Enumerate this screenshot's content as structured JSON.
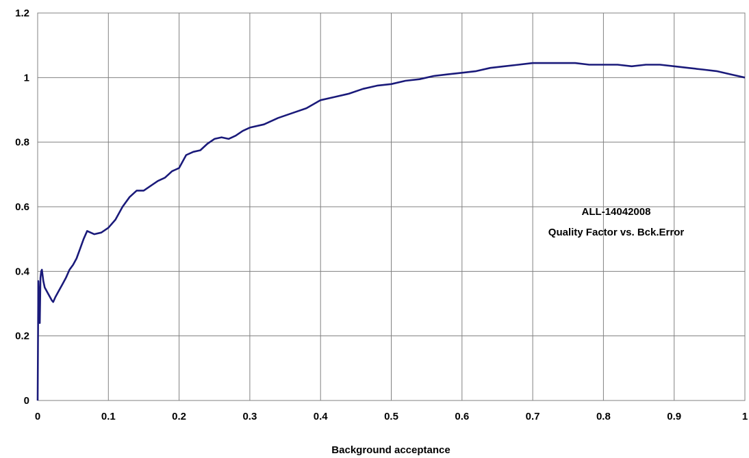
{
  "chart_data": {
    "type": "line",
    "xlabel": "Background acceptance",
    "ylabel": "",
    "xlim": [
      0,
      1
    ],
    "ylim": [
      0,
      1.2
    ],
    "x_ticks": [
      "0",
      "0.1",
      "0.2",
      "0.3",
      "0.4",
      "0.5",
      "0.6",
      "0.7",
      "0.8",
      "0.9",
      "1"
    ],
    "y_ticks": [
      "0",
      "0.2",
      "0.4",
      "0.6",
      "0.8",
      "1",
      "1.2"
    ],
    "grid": true,
    "line_color": "#1a1a7a",
    "annotation": [
      "ALL-14042008",
      "Quality Factor vs. Bck.Error"
    ],
    "series": [
      {
        "x": [
          0,
          0.001,
          0.002,
          0.003,
          0.004,
          0.005,
          0.006,
          0.008,
          0.01,
          0.015,
          0.02,
          0.022,
          0.025,
          0.03,
          0.035,
          0.04,
          0.045,
          0.05,
          0.055,
          0.06,
          0.065,
          0.07,
          0.08,
          0.09,
          0.1,
          0.11,
          0.12,
          0.13,
          0.14,
          0.15,
          0.16,
          0.17,
          0.18,
          0.19,
          0.2,
          0.21,
          0.22,
          0.23,
          0.24,
          0.25,
          0.26,
          0.27,
          0.28,
          0.29,
          0.3,
          0.32,
          0.34,
          0.36,
          0.38,
          0.4,
          0.42,
          0.44,
          0.46,
          0.48,
          0.5,
          0.52,
          0.54,
          0.56,
          0.58,
          0.6,
          0.62,
          0.64,
          0.66,
          0.68,
          0.7,
          0.72,
          0.74,
          0.76,
          0.78,
          0.8,
          0.82,
          0.84,
          0.86,
          0.88,
          0.9,
          0.92,
          0.94,
          0.96,
          0.98,
          1.0
        ],
        "y": [
          0.0,
          0.37,
          0.3,
          0.24,
          0.38,
          0.4,
          0.405,
          0.37,
          0.35,
          0.33,
          0.31,
          0.305,
          0.32,
          0.34,
          0.36,
          0.38,
          0.405,
          0.42,
          0.44,
          0.47,
          0.5,
          0.525,
          0.515,
          0.52,
          0.535,
          0.56,
          0.6,
          0.63,
          0.65,
          0.65,
          0.665,
          0.68,
          0.69,
          0.71,
          0.72,
          0.76,
          0.77,
          0.775,
          0.795,
          0.81,
          0.815,
          0.81,
          0.82,
          0.835,
          0.845,
          0.855,
          0.875,
          0.89,
          0.905,
          0.93,
          0.94,
          0.95,
          0.965,
          0.975,
          0.98,
          0.99,
          0.995,
          1.005,
          1.01,
          1.015,
          1.02,
          1.03,
          1.035,
          1.04,
          1.045,
          1.045,
          1.045,
          1.045,
          1.04,
          1.04,
          1.04,
          1.035,
          1.04,
          1.04,
          1.035,
          1.03,
          1.025,
          1.02,
          1.01,
          1.0
        ]
      }
    ]
  }
}
